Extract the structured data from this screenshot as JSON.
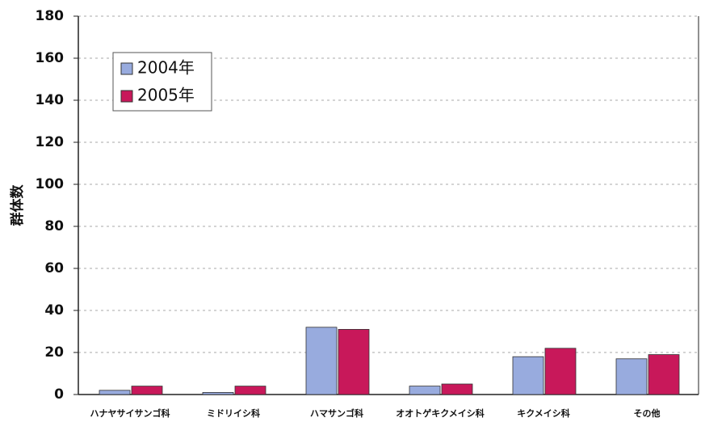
{
  "chart_data": {
    "type": "bar",
    "y_label": "群体数",
    "categories": [
      "ハナヤサイサンゴ科",
      "ミドリイシ科",
      "ハマサンゴ科",
      "オオトゲキクメイシ科",
      "キクメイシ科",
      "その他"
    ],
    "series": [
      {
        "name": "2004年",
        "color": "#98abde",
        "values": [
          2,
          1,
          32,
          4,
          18,
          17
        ]
      },
      {
        "name": "2005年",
        "color": "#c8185a",
        "values": [
          4,
          4,
          31,
          5,
          22,
          19
        ]
      }
    ],
    "ylim": [
      0,
      180
    ],
    "yticks": [
      0,
      20,
      40,
      60,
      80,
      100,
      120,
      140,
      160,
      180
    ],
    "grid": true,
    "legend": "upper left"
  }
}
